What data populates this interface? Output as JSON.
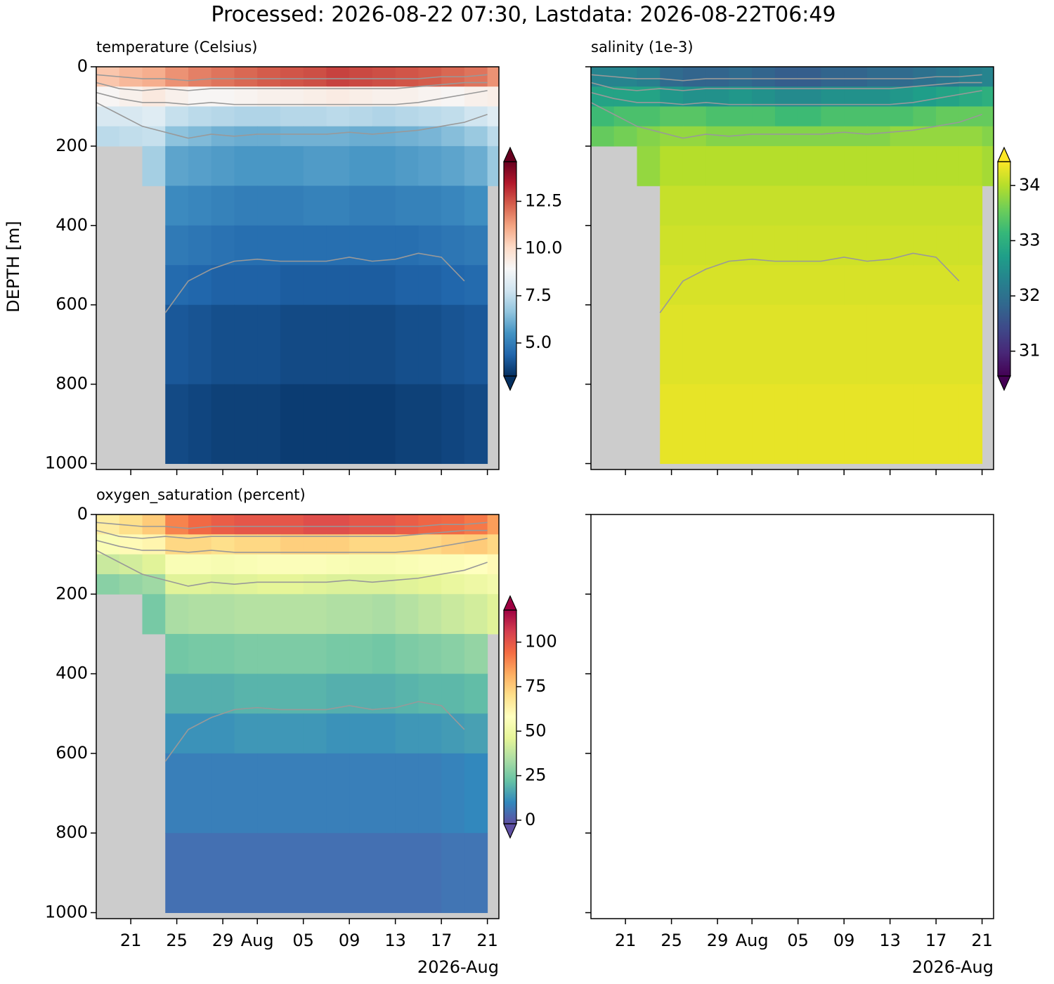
{
  "title": "Processed: 2026-08-22 07:30, Lastdata: 2026-08-22T06:49",
  "chart_data": [
    {
      "type": "heatmap",
      "title": "temperature (Celsius)",
      "ylabel": "DEPTH [m]",
      "x": [
        "2026-07-18",
        "2026-07-20",
        "2026-07-22",
        "2026-07-24",
        "2026-07-26",
        "2026-07-28",
        "2026-07-30",
        "2026-08-01",
        "2026-08-03",
        "2026-08-05",
        "2026-08-07",
        "2026-08-09",
        "2026-08-11",
        "2026-08-13",
        "2026-08-15",
        "2026-08-17",
        "2026-08-19",
        "2026-08-21"
      ],
      "depth_bins": [
        0,
        50,
        100,
        150,
        200,
        300,
        400,
        500,
        600,
        800,
        1000
      ],
      "values": [
        [
          10.5,
          10.8,
          11,
          11.5,
          11.8,
          12,
          12.2,
          12.4,
          12.5,
          12.6,
          12.8,
          12.7,
          12.6,
          12.5,
          12.4,
          12.2,
          12,
          11.5
        ],
        [
          9,
          9.2,
          9.5,
          9.2,
          9,
          9,
          9.1,
          9.2,
          9.2,
          9.3,
          9.4,
          9.3,
          9.2,
          9.2,
          9.1,
          9,
          9.2,
          9.3
        ],
        [
          8,
          8,
          8.2,
          7.6,
          7.4,
          7.3,
          7.2,
          7.2,
          7.3,
          7.3,
          7.4,
          7.3,
          7.2,
          7.3,
          7.4,
          7.5,
          7.8,
          8.2
        ],
        [
          7.4,
          7.5,
          7.6,
          6.6,
          6.4,
          6.2,
          6.1,
          6.1,
          6.2,
          6.2,
          6.2,
          6.1,
          6.1,
          6.2,
          6.3,
          6.5,
          6.8,
          7.4
        ],
        [
          null,
          null,
          7,
          5.9,
          5.8,
          5.7,
          5.6,
          5.6,
          5.6,
          5.7,
          5.7,
          5.6,
          5.6,
          5.7,
          5.8,
          5.9,
          6.1,
          6.8
        ],
        [
          null,
          null,
          null,
          5.3,
          5.2,
          5.1,
          5,
          5,
          5,
          5.1,
          5.1,
          5,
          5,
          5.1,
          5.1,
          5.2,
          5.4,
          null
        ],
        [
          null,
          null,
          null,
          4.9,
          4.8,
          4.7,
          4.6,
          4.6,
          4.6,
          4.6,
          4.6,
          4.6,
          4.6,
          4.6,
          4.7,
          4.8,
          4.9,
          null
        ],
        [
          null,
          null,
          null,
          4.5,
          4.4,
          4.3,
          4.3,
          4.3,
          4.2,
          4.2,
          4.2,
          4.2,
          4.2,
          4.3,
          4.3,
          4.4,
          4.5,
          null
        ],
        [
          null,
          null,
          null,
          4.1,
          4,
          3.9,
          3.9,
          3.9,
          3.8,
          3.8,
          3.8,
          3.8,
          3.8,
          3.9,
          3.9,
          4,
          4.1,
          null
        ],
        [
          null,
          null,
          null,
          3.8,
          3.7,
          3.6,
          3.6,
          3.6,
          3.5,
          3.5,
          3.5,
          3.5,
          3.5,
          3.6,
          3.6,
          3.7,
          3.8,
          null
        ]
      ],
      "colormap": "RdBu_r",
      "clim": [
        3.25,
        14.6
      ],
      "cticks": [
        {
          "value": 5,
          "label": "5.0"
        },
        7.5,
        {
          "value": 10,
          "label": "10.0"
        },
        12.5
      ],
      "xlim": [
        "2026-07-18",
        "2026-08-22"
      ],
      "xticks": [
        "2026-07-21",
        "2026-07-25",
        "2026-07-29",
        "2026-08-01",
        "2026-08-05",
        "2026-08-09",
        "2026-08-13",
        "2026-08-17",
        "2026-08-21"
      ],
      "xticklabels": false,
      "ylim": [
        1015,
        0
      ],
      "yticks": [
        0,
        200,
        400,
        600,
        800,
        1000
      ],
      "contour_color": "#999999",
      "contours": [
        {
          "values": [
            20,
            25,
            30,
            30,
            35,
            30,
            30,
            30,
            30,
            30,
            30,
            30,
            30,
            30,
            30,
            25,
            25,
            20
          ]
        },
        {
          "values": [
            40,
            55,
            60,
            55,
            60,
            55,
            55,
            55,
            55,
            55,
            55,
            55,
            55,
            55,
            50,
            45,
            40,
            40
          ]
        },
        {
          "values": [
            65,
            80,
            90,
            90,
            95,
            90,
            95,
            95,
            95,
            95,
            95,
            95,
            95,
            95,
            90,
            80,
            70,
            60
          ]
        },
        {
          "values": [
            90,
            120,
            150,
            165,
            180,
            170,
            175,
            170,
            170,
            170,
            170,
            165,
            170,
            165,
            160,
            150,
            140,
            120
          ]
        },
        {
          "values": [
            null,
            null,
            null,
            620,
            540,
            510,
            490,
            485,
            490,
            490,
            490,
            480,
            490,
            485,
            470,
            480,
            540,
            null
          ]
        }
      ]
    },
    {
      "type": "heatmap",
      "title": "salinity (1e-3)",
      "x": [
        "2026-07-18",
        "2026-07-20",
        "2026-07-22",
        "2026-07-24",
        "2026-07-26",
        "2026-07-28",
        "2026-07-30",
        "2026-08-01",
        "2026-08-03",
        "2026-08-05",
        "2026-08-07",
        "2026-08-09",
        "2026-08-11",
        "2026-08-13",
        "2026-08-15",
        "2026-08-17",
        "2026-08-19",
        "2026-08-21"
      ],
      "depth_bins": [
        0,
        50,
        100,
        150,
        200,
        300,
        400,
        500,
        600,
        800,
        1000
      ],
      "values": [
        [
          32.3,
          32.3,
          32.2,
          31.9,
          31.8,
          31.8,
          31.9,
          31.8,
          31.7,
          31.7,
          31.8,
          31.8,
          31.9,
          31.9,
          32,
          32.1,
          32.2,
          32.3
        ],
        [
          32.8,
          32.8,
          32.8,
          32.6,
          32.5,
          32.5,
          32.6,
          32.5,
          32.4,
          32.4,
          32.5,
          32.5,
          32.5,
          32.6,
          32.7,
          32.8,
          32.9,
          33
        ],
        [
          33.2,
          33.3,
          33.3,
          33.4,
          33.4,
          33.3,
          33.3,
          33.3,
          33.2,
          33.2,
          33.3,
          33.3,
          33.3,
          33.3,
          33.4,
          33.5,
          33.5,
          33.5
        ],
        [
          33.5,
          33.6,
          33.7,
          33.8,
          33.8,
          33.7,
          33.7,
          33.7,
          33.7,
          33.7,
          33.7,
          33.7,
          33.7,
          33.8,
          33.8,
          33.8,
          33.8,
          33.7
        ],
        [
          null,
          null,
          33.8,
          34,
          34,
          34,
          34,
          34,
          34,
          34,
          34,
          34,
          34,
          34,
          34,
          34,
          34,
          33.9
        ],
        [
          null,
          null,
          null,
          34.1,
          34.1,
          34.1,
          34.1,
          34.1,
          34.1,
          34.1,
          34.1,
          34.1,
          34.1,
          34.1,
          34.1,
          34.1,
          34.1,
          null
        ],
        [
          null,
          null,
          null,
          34.15,
          34.15,
          34.15,
          34.15,
          34.15,
          34.15,
          34.15,
          34.15,
          34.15,
          34.15,
          34.15,
          34.15,
          34.15,
          34.15,
          null
        ],
        [
          null,
          null,
          null,
          34.2,
          34.2,
          34.2,
          34.2,
          34.2,
          34.2,
          34.2,
          34.2,
          34.2,
          34.2,
          34.2,
          34.2,
          34.2,
          34.2,
          null
        ],
        [
          null,
          null,
          null,
          34.25,
          34.25,
          34.25,
          34.25,
          34.25,
          34.25,
          34.25,
          34.25,
          34.25,
          34.25,
          34.25,
          34.25,
          34.25,
          34.25,
          null
        ],
        [
          null,
          null,
          null,
          34.3,
          34.3,
          34.3,
          34.3,
          34.3,
          34.3,
          34.3,
          34.3,
          34.3,
          34.3,
          34.3,
          34.3,
          34.3,
          34.3,
          null
        ]
      ],
      "colormap": "viridis",
      "clim": [
        30.55,
        34.43
      ],
      "cticks": [
        31,
        32,
        33,
        34
      ],
      "xlim": [
        "2026-07-18",
        "2026-08-22"
      ],
      "xticks": [
        "2026-07-21",
        "2026-07-25",
        "2026-07-29",
        "2026-08-01",
        "2026-08-05",
        "2026-08-09",
        "2026-08-13",
        "2026-08-17",
        "2026-08-21"
      ],
      "xticklabels": false,
      "ylim": [
        1015,
        0
      ],
      "yticks": [
        0,
        200,
        400,
        600,
        800,
        1000
      ],
      "yticklabels": false
    },
    {
      "type": "heatmap",
      "title": "oxygen_saturation (percent)",
      "x": [
        "2026-07-18",
        "2026-07-20",
        "2026-07-22",
        "2026-07-24",
        "2026-07-26",
        "2026-07-28",
        "2026-07-30",
        "2026-08-01",
        "2026-08-03",
        "2026-08-05",
        "2026-08-07",
        "2026-08-09",
        "2026-08-11",
        "2026-08-13",
        "2026-08-15",
        "2026-08-17",
        "2026-08-19",
        "2026-08-21"
      ],
      "depth_bins": [
        0,
        50,
        100,
        150,
        200,
        300,
        400,
        500,
        600,
        800,
        1000
      ],
      "values": [
        [
          65,
          70,
          75,
          90,
          95,
          98,
          100,
          100,
          100,
          102,
          102,
          100,
          100,
          98,
          96,
          95,
          92,
          85
        ],
        [
          55,
          60,
          62,
          72,
          72,
          70,
          72,
          72,
          74,
          74,
          74,
          72,
          72,
          72,
          72,
          74,
          75,
          72
        ],
        [
          40,
          42,
          45,
          55,
          55,
          54,
          55,
          56,
          56,
          56,
          55,
          54,
          54,
          55,
          56,
          56,
          58,
          60
        ],
        [
          28,
          30,
          32,
          45,
          45,
          44,
          45,
          46,
          46,
          45,
          44,
          44,
          44,
          45,
          46,
          48,
          50,
          52
        ],
        [
          null,
          null,
          25,
          34,
          35,
          35,
          36,
          36,
          36,
          36,
          35,
          35,
          34,
          36,
          38,
          40,
          42,
          45
        ],
        [
          null,
          null,
          null,
          24,
          25,
          25,
          26,
          26,
          26,
          26,
          25,
          25,
          24,
          26,
          27,
          28,
          30,
          null
        ],
        [
          null,
          null,
          null,
          18,
          18,
          18,
          19,
          19,
          19,
          19,
          18,
          18,
          18,
          19,
          20,
          20,
          21,
          null
        ],
        [
          null,
          null,
          null,
          12,
          12,
          12,
          13,
          13,
          13,
          13,
          12,
          12,
          12,
          13,
          13,
          14,
          15,
          null
        ],
        [
          null,
          null,
          null,
          8,
          8,
          8,
          8,
          8,
          8,
          8,
          8,
          8,
          8,
          8,
          8,
          9,
          10,
          null
        ],
        [
          null,
          null,
          null,
          5,
          5,
          5,
          5,
          5,
          5,
          5,
          5,
          5,
          5,
          5,
          5,
          6,
          6,
          null
        ]
      ],
      "colormap": "Spectral_r",
      "clim": [
        -2,
        118
      ],
      "cticks": [
        0,
        25,
        50,
        75,
        100
      ],
      "xlim": [
        "2026-07-18",
        "2026-08-22"
      ],
      "xticks": [
        {
          "value": "2026-07-21",
          "label": "21"
        },
        {
          "value": "2026-07-25",
          "label": "25"
        },
        {
          "value": "2026-07-29",
          "label": "29"
        },
        {
          "value": "2026-08-01",
          "label": "Aug"
        },
        {
          "value": "2026-08-05",
          "label": "05"
        },
        {
          "value": "2026-08-09",
          "label": "09"
        },
        {
          "value": "2026-08-13",
          "label": "13"
        },
        {
          "value": "2026-08-17",
          "label": "17"
        },
        {
          "value": "2026-08-21",
          "label": "21"
        }
      ],
      "xoffset": "2026-Aug",
      "ylim": [
        1015,
        0
      ],
      "yticks": [
        0,
        200,
        400,
        600,
        800,
        1000
      ]
    },
    {
      "type": "empty",
      "xlim": [
        "2026-07-18",
        "2026-08-22"
      ],
      "xticks": [
        {
          "value": "2026-07-21",
          "label": "21"
        },
        {
          "value": "2026-07-25",
          "label": "25"
        },
        {
          "value": "2026-07-29",
          "label": "29"
        },
        {
          "value": "2026-08-01",
          "label": "Aug"
        },
        {
          "value": "2026-08-05",
          "label": "05"
        },
        {
          "value": "2026-08-09",
          "label": "09"
        },
        {
          "value": "2026-08-13",
          "label": "13"
        },
        {
          "value": "2026-08-17",
          "label": "17"
        },
        {
          "value": "2026-08-21",
          "label": "21"
        }
      ],
      "xoffset": "2026-Aug",
      "ylim": [
        1015,
        0
      ],
      "yticks": [
        0,
        200,
        400,
        600,
        800,
        1000
      ],
      "yticklabels": false
    }
  ]
}
